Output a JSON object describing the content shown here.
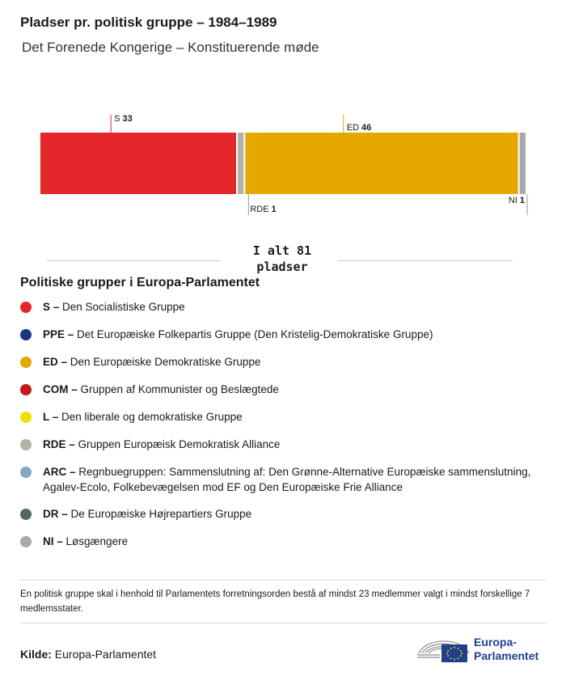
{
  "header": {
    "title": "Pladser pr. politisk gruppe – 1984–1989",
    "subtitle": "Det Forenede Kongerige – Konstituerende møde"
  },
  "chart_data": {
    "type": "bar",
    "orientation": "horizontal-stacked",
    "total": 81,
    "segments": [
      {
        "code": "S",
        "value": 33,
        "color": "#e3262a",
        "label_position": "top"
      },
      {
        "code": "RDE",
        "value": 1,
        "color": "#b3b0a7",
        "label_position": "bottom"
      },
      {
        "code": "ED",
        "value": 46,
        "color": "#e6a800",
        "label_position": "top"
      },
      {
        "code": "NI",
        "value": 1,
        "color": "#aaaaaa",
        "label_position": "bottom"
      }
    ]
  },
  "total_label": {
    "line1": "I alt 81",
    "line2": "pladser"
  },
  "legend": {
    "title": "Politiske grupper i Europa-Parlamentet",
    "items": [
      {
        "code": "S –",
        "text": "Den Socialistiske Gruppe",
        "color": "#e3262a"
      },
      {
        "code": "PPE –",
        "text": "Det Europæiske Folkepartis Gruppe (Den Kristelig-Demokratiske Gruppe)",
        "color": "#1f3580"
      },
      {
        "code": "ED –",
        "text": "Den Europæiske Demokratiske Gruppe",
        "color": "#e6a800"
      },
      {
        "code": "COM –",
        "text": "Gruppen af Kommunister og Beslægtede",
        "color": "#c4161c"
      },
      {
        "code": "L –",
        "text": "Den liberale og demokratiske Gruppe",
        "color": "#ede200"
      },
      {
        "code": "RDE –",
        "text": "Gruppen Europæisk Demokratisk Alliance",
        "color": "#b3b0a7"
      },
      {
        "code": "ARC –",
        "text": "Regnbuegruppen: Sammenslutning af: Den Grønne-Alternative Europæiske sammenslutning, Agalev-Ecolo, Folkebevægelsen mod EF og Den Europæiske Frie Alliance",
        "color": "#86a9c3"
      },
      {
        "code": "DR –",
        "text": "De Europæiske Højrepartiers Gruppe",
        "color": "#4f6b5d"
      },
      {
        "code": "NI –",
        "text": "Løsgængere",
        "color": "#aaaaaa"
      }
    ]
  },
  "note": "En politisk gruppe skal i henhold til Parlamentets forretningsorden bestå af mindst 23 medlemmer valgt i mindst forskellige 7 medlemsstater.",
  "source": {
    "label": "Kilde:",
    "value": "Europa-Parlamentet"
  },
  "logo": {
    "line1": "Europa-",
    "line2": "Parlamentet",
    "icon": "european-parliament-logo-icon"
  }
}
